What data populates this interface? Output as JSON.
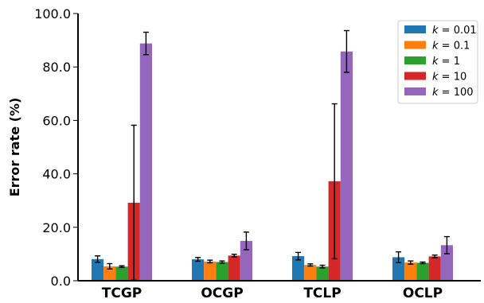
{
  "chart_data": {
    "type": "bar",
    "title": "",
    "xlabel": "",
    "ylabel": "Error rate (%)",
    "ylim": [
      0,
      100
    ],
    "yticks": [
      "0.0",
      "20.0",
      "40.0",
      "60.0",
      "80.0",
      "100.0"
    ],
    "categories": [
      "TCGP",
      "OCGP",
      "TCLP",
      "OCLP"
    ],
    "legend_position": "top-right",
    "series": [
      {
        "name": "k = 0.01",
        "legend_k": "k",
        "legend_value": " = 0.01",
        "color": "#1f77b4",
        "values": [
          8.1,
          8.0,
          9.2,
          8.8
        ],
        "errors": [
          1.2,
          0.7,
          1.4,
          2.0
        ]
      },
      {
        "name": "k = 0.1",
        "legend_k": "k",
        "legend_value": " = 0.1",
        "color": "#ff7f0e",
        "values": [
          5.4,
          7.2,
          5.9,
          6.8
        ],
        "errors": [
          1.0,
          0.5,
          0.4,
          0.6
        ]
      },
      {
        "name": "k = 1",
        "legend_k": "k",
        "legend_value": " = 1",
        "color": "#2ca02c",
        "values": [
          5.3,
          7.0,
          5.3,
          6.7
        ],
        "errors": [
          0.3,
          0.4,
          0.5,
          0.3
        ]
      },
      {
        "name": "k = 10",
        "legend_k": "k",
        "legend_value": " = 10",
        "color": "#d62728",
        "values": [
          29.2,
          9.4,
          37.2,
          9.1
        ],
        "errors": [
          29.0,
          0.5,
          29.0,
          0.5
        ]
      },
      {
        "name": "k = 100",
        "legend_k": "k",
        "legend_value": " = 100",
        "color": "#9467bd",
        "values": [
          88.8,
          14.9,
          85.8,
          13.3
        ],
        "errors": [
          4.2,
          3.3,
          7.8,
          3.2
        ]
      }
    ]
  }
}
